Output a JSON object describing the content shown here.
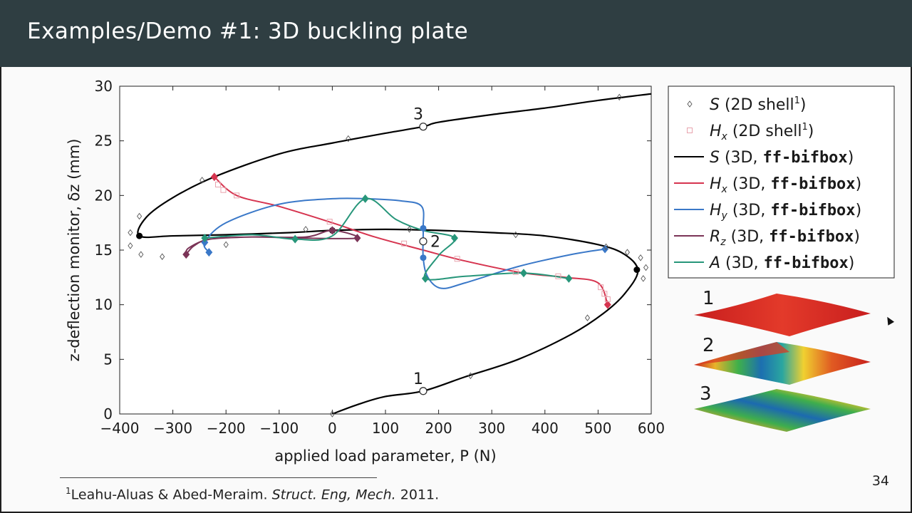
{
  "slide": {
    "title": "Examples/Demo #1: 3D buckling plate",
    "page_number": "34",
    "footnote_marker": "1",
    "footnote_authors": "Leahu-Aluas & Abed-Meraim.",
    "footnote_journal": "Struct. Eng, Mech.",
    "footnote_year": "2011."
  },
  "modes": [
    {
      "label": "1"
    },
    {
      "label": "2"
    },
    {
      "label": "3"
    }
  ],
  "chart_data": {
    "type": "line",
    "xlabel": "applied load parameter, P (N)",
    "ylabel": "z-deflection monitor, δz (mm)",
    "xlim": [
      -400,
      600
    ],
    "ylim": [
      0,
      30
    ],
    "xticks": [
      "−400",
      "−300",
      "−200",
      "−100",
      "0",
      "100",
      "200",
      "300",
      "400",
      "500",
      "600"
    ],
    "yticks": [
      "0",
      "5",
      "10",
      "15",
      "20",
      "25",
      "30"
    ],
    "colors": {
      "S": "#000000",
      "Hx": "#d6344f",
      "Hy": "#3a78c8",
      "Rz": "#7b3457",
      "A": "#27967a",
      "Hx_ref": "#e8a3ad",
      "S_ref": "#555555"
    },
    "legend": [
      {
        "key": "S",
        "sym": "S",
        "sub": "",
        "text": " (2D shell",
        "sup": "1",
        "close": ")",
        "code": "",
        "marker": "diamond-open"
      },
      {
        "key": "Hx_ref",
        "sym": "H",
        "sub": "x",
        "text": " (2D shell",
        "sup": "1",
        "close": ")",
        "code": "",
        "marker": "square-open"
      },
      {
        "key": "S",
        "sym": "S",
        "sub": "",
        "text": " (3D, ",
        "sup": "",
        "close": ")",
        "code": "ff-bifbox",
        "marker": "line"
      },
      {
        "key": "Hx",
        "sym": "H",
        "sub": "x",
        "text": " (3D, ",
        "sup": "",
        "close": ")",
        "code": "ff-bifbox",
        "marker": "line"
      },
      {
        "key": "Hy",
        "sym": "H",
        "sub": "y",
        "text": " (3D, ",
        "sup": "",
        "close": ")",
        "code": "ff-bifbox",
        "marker": "line"
      },
      {
        "key": "Rz",
        "sym": "R",
        "sub": "z",
        "text": " (3D, ",
        "sup": "",
        "close": ")",
        "code": "ff-bifbox",
        "marker": "line"
      },
      {
        "key": "A",
        "sym": "A",
        "sub": "",
        "text": " (3D, ",
        "sup": "",
        "close": ")",
        "code": "ff-bifbox",
        "marker": "line"
      }
    ],
    "annotations": [
      {
        "label": "1",
        "x": 171,
        "y": 2.1
      },
      {
        "label": "2",
        "x": 171,
        "y": 15.8
      },
      {
        "label": "3",
        "x": 171,
        "y": 26.3
      }
    ],
    "series": [
      {
        "name": "S (3D)",
        "key": "S",
        "width": 2.2,
        "points": [
          [
            0,
            0
          ],
          [
            50,
            0.9
          ],
          [
            100,
            1.6
          ],
          [
            171,
            2.1
          ],
          [
            250,
            3.4
          ],
          [
            350,
            5.0
          ],
          [
            450,
            7.3
          ],
          [
            510,
            9.2
          ],
          [
            550,
            11.0
          ],
          [
            575,
            13.1
          ],
          [
            550,
            14.6
          ],
          [
            500,
            15.5
          ],
          [
            400,
            16.3
          ],
          [
            300,
            16.6
          ],
          [
            200,
            16.8
          ],
          [
            100,
            16.9
          ],
          [
            0,
            16.8
          ],
          [
            -80,
            16.6
          ],
          [
            -200,
            16.4
          ],
          [
            -300,
            16.3
          ],
          [
            -363,
            16.3
          ],
          [
            -350,
            18.0
          ],
          [
            -300,
            19.8
          ],
          [
            -222,
            21.7
          ],
          [
            -100,
            23.8
          ],
          [
            0,
            24.8
          ],
          [
            100,
            25.7
          ],
          [
            171,
            26.3
          ],
          [
            200,
            26.7
          ],
          [
            300,
            27.4
          ],
          [
            400,
            28.0
          ],
          [
            500,
            28.7
          ],
          [
            600,
            29.3
          ]
        ]
      },
      {
        "name": "Hx (3D)",
        "key": "Hx",
        "width": 2,
        "points": [
          [
            -222,
            21.7
          ],
          [
            -180,
            20.0
          ],
          [
            -100,
            19.0
          ],
          [
            0,
            17.5
          ],
          [
            80,
            16.2
          ],
          [
            171,
            15.0
          ],
          [
            250,
            14.0
          ],
          [
            360,
            12.9
          ],
          [
            440,
            12.5
          ],
          [
            500,
            12.0
          ],
          [
            518,
            10.0
          ]
        ]
      },
      {
        "name": "Hy (3D)",
        "key": "Hy",
        "width": 2,
        "points": [
          [
            -232,
            14.8
          ],
          [
            -240,
            15.7
          ],
          [
            -200,
            17.5
          ],
          [
            -100,
            19.2
          ],
          [
            0,
            19.7
          ],
          [
            62,
            19.7
          ],
          [
            130,
            19.5
          ],
          [
            168,
            19.0
          ],
          [
            171,
            17.0
          ],
          [
            171,
            14.3
          ],
          [
            180,
            12.5
          ],
          [
            205,
            11.5
          ],
          [
            250,
            12.0
          ],
          [
            350,
            13.5
          ],
          [
            450,
            14.6
          ],
          [
            513,
            15.1
          ]
        ]
      },
      {
        "name": "Rz (3D)",
        "key": "Rz",
        "width": 2,
        "points": [
          [
            -275,
            14.6
          ],
          [
            -260,
            15.4
          ],
          [
            -230,
            16.0
          ],
          [
            -150,
            16.2
          ],
          [
            -50,
            16.2
          ],
          [
            0,
            16.8
          ],
          [
            47,
            16.1
          ],
          [
            -60,
            16.1
          ],
          [
            -150,
            16.2
          ],
          [
            -230,
            16.0
          ],
          [
            -270,
            15.2
          ],
          [
            -275,
            14.6
          ]
        ]
      },
      {
        "name": "A (3D)",
        "key": "A",
        "width": 2,
        "points": [
          [
            -240,
            16.1
          ],
          [
            -150,
            16.4
          ],
          [
            -70,
            16.0
          ],
          [
            0,
            16.3
          ],
          [
            62,
            19.7
          ],
          [
            120,
            17.8
          ],
          [
            171,
            16.8
          ],
          [
            230,
            16.1
          ],
          [
            200,
            14.5
          ],
          [
            175,
            12.4
          ],
          [
            250,
            12.6
          ],
          [
            360,
            12.9
          ],
          [
            445,
            12.4
          ]
        ]
      }
    ],
    "markers": [
      {
        "key": "S",
        "shape": "circle",
        "points": [
          [
            -363,
            16.3
          ],
          [
            573,
            13.2
          ],
          [
            0,
            16.8
          ]
        ]
      },
      {
        "key": "S",
        "shape": "ring",
        "points": [
          [
            171,
            2.1
          ],
          [
            171,
            15.8
          ],
          [
            171,
            26.3
          ]
        ]
      },
      {
        "key": "Hx",
        "shape": "diamond",
        "points": [
          [
            -222,
            21.7
          ],
          [
            518,
            10.0
          ]
        ]
      },
      {
        "key": "Hy",
        "shape": "diamond",
        "points": [
          [
            -232,
            14.8
          ],
          [
            513,
            15.1
          ],
          [
            -240,
            15.7
          ]
        ]
      },
      {
        "key": "Hy",
        "shape": "circle",
        "points": [
          [
            171,
            17.0
          ],
          [
            171,
            14.3
          ]
        ]
      },
      {
        "key": "Rz",
        "shape": "diamond",
        "points": [
          [
            -275,
            14.6
          ],
          [
            0,
            16.8
          ],
          [
            47,
            16.1
          ]
        ]
      },
      {
        "key": "A",
        "shape": "diamond",
        "points": [
          [
            -240,
            16.1
          ],
          [
            -70,
            16.0
          ],
          [
            62,
            19.7
          ],
          [
            230,
            16.1
          ],
          [
            175,
            12.4
          ],
          [
            360,
            12.9
          ],
          [
            445,
            12.4
          ]
        ]
      },
      {
        "key": "S_ref",
        "shape": "diamond-open",
        "points": [
          [
            0,
            0
          ],
          [
            260,
            3.5
          ],
          [
            480,
            8.8
          ],
          [
            540,
            29.0
          ],
          [
            30,
            25.2
          ],
          [
            -245,
            21.4
          ],
          [
            -363,
            18.1
          ],
          [
            -380,
            16.6
          ],
          [
            -380,
            15.4
          ],
          [
            -360,
            14.6
          ],
          [
            -320,
            14.4
          ],
          [
            -200,
            15.5
          ],
          [
            -50,
            16.9
          ],
          [
            145,
            16.9
          ],
          [
            345,
            16.4
          ],
          [
            515,
            15.3
          ],
          [
            555,
            14.8
          ],
          [
            580,
            14.3
          ],
          [
            590,
            13.4
          ],
          [
            585,
            12.4
          ]
        ]
      },
      {
        "key": "Hx_ref",
        "shape": "square-open",
        "points": [
          [
            -215,
            21.0
          ],
          [
            -205,
            20.5
          ],
          [
            -180,
            20.0
          ],
          [
            -5,
            17.6
          ],
          [
            135,
            15.6
          ],
          [
            235,
            14.2
          ],
          [
            345,
            13.0
          ],
          [
            425,
            12.6
          ],
          [
            505,
            11.6
          ],
          [
            512,
            11.0
          ],
          [
            518,
            10.5
          ]
        ]
      }
    ]
  }
}
